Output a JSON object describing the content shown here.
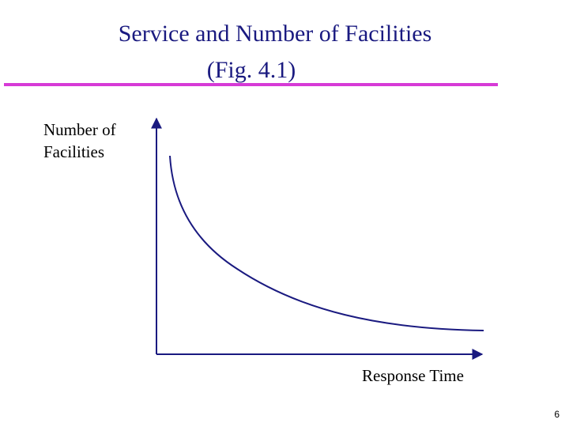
{
  "header": {
    "title_lines": [
      "Service and Number of Facilities",
      "(Fig. 4.1)"
    ]
  },
  "diagram": {
    "y_axis_label_lines": [
      "Number of",
      "Facilities"
    ],
    "x_axis_label": "Response Time"
  },
  "footer": {
    "page_number": "6"
  }
}
